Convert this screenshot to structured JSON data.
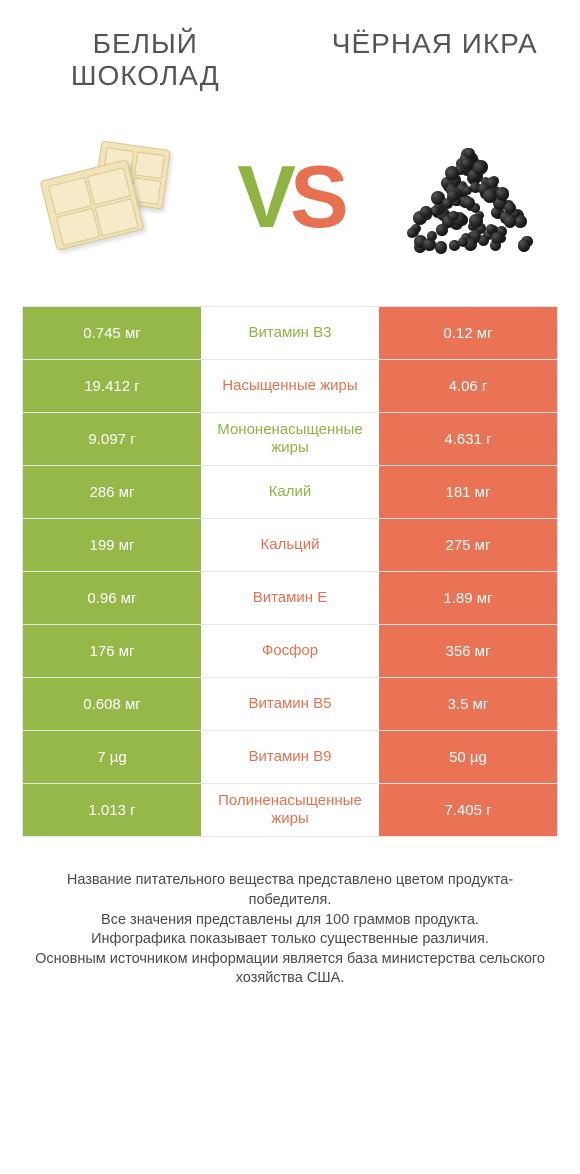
{
  "left_title": "БЕЛЫЙ ШОКОЛАД",
  "right_title": "ЧЁРНАЯ ИКРА",
  "vs_v": "V",
  "vs_s": "S",
  "colors": {
    "green": "#96b848",
    "orange": "#ea7355",
    "mid_green": "#8fb441",
    "mid_orange": "#e6704f",
    "border": "#e5e5e5",
    "bg": "#ffffff"
  },
  "rows": [
    {
      "left": "0.745 мг",
      "mid": "Витамин B3",
      "right": "0.12 мг",
      "winner": "left"
    },
    {
      "left": "19.412 г",
      "mid": "Насыщенные жиры",
      "right": "4.06 г",
      "winner": "right"
    },
    {
      "left": "9.097 г",
      "mid": "Мононенасыщенные жиры",
      "right": "4.631 г",
      "winner": "left"
    },
    {
      "left": "286 мг",
      "mid": "Калий",
      "right": "181 мг",
      "winner": "left"
    },
    {
      "left": "199 мг",
      "mid": "Кальций",
      "right": "275 мг",
      "winner": "right"
    },
    {
      "left": "0.96 мг",
      "mid": "Витамин E",
      "right": "1.89 мг",
      "winner": "right"
    },
    {
      "left": "176 мг",
      "mid": "Фосфор",
      "right": "356 мг",
      "winner": "right"
    },
    {
      "left": "0.608 мг",
      "mid": "Витамин B5",
      "right": "3.5 мг",
      "winner": "right"
    },
    {
      "left": "7 µg",
      "mid": "Витамин B9",
      "right": "50 µg",
      "winner": "right"
    },
    {
      "left": "1.013 г",
      "mid": "Полиненасыщенные жиры",
      "right": "7.405 г",
      "winner": "right"
    }
  ],
  "footer": {
    "l1": "Название питательного вещества представлено цветом продукта-победителя.",
    "l2": "Все значения представлены для 100 граммов продукта.",
    "l3": "Инфографика показывает только существенные различия.",
    "l4": "Основным источником информации является база министерства сельского хозяйства США."
  }
}
